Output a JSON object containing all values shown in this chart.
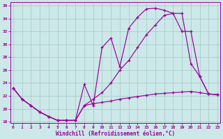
{
  "background_color": "#cce8e8",
  "grid_color": "#aacccc",
  "line_color": "#990099",
  "xlabel": "Windchill (Refroidissement éolien,°C)",
  "xlim": [
    -0.3,
    23.3
  ],
  "ylim": [
    17.8,
    36.5
  ],
  "ytick_vals": [
    18,
    20,
    22,
    24,
    26,
    28,
    30,
    32,
    34,
    36
  ],
  "xtick_vals": [
    0,
    1,
    2,
    3,
    4,
    5,
    6,
    7,
    8,
    9,
    10,
    11,
    12,
    13,
    14,
    15,
    16,
    17,
    18,
    19,
    20,
    21,
    22,
    23
  ],
  "line1_x": [
    0,
    1,
    2,
    3,
    4,
    5,
    6,
    7,
    8,
    9,
    10,
    11,
    12,
    13,
    14,
    15,
    16,
    17,
    18,
    19,
    20,
    21,
    22,
    23
  ],
  "line1_y": [
    23.2,
    21.5,
    20.5,
    19.5,
    18.8,
    18.2,
    18.2,
    18.2,
    23.8,
    20.5,
    29.5,
    31.0,
    26.5,
    32.5,
    34.2,
    35.5,
    35.6,
    35.3,
    34.8,
    34.8,
    27.0,
    25.0,
    22.3,
    22.2
  ],
  "line2_x": [
    0,
    1,
    2,
    3,
    4,
    5,
    6,
    7,
    8,
    9,
    10,
    11,
    12,
    13,
    14,
    15,
    16,
    17,
    18,
    19,
    20,
    21,
    22,
    23
  ],
  "line2_y": [
    23.2,
    21.5,
    20.5,
    19.5,
    18.8,
    18.2,
    18.2,
    18.2,
    20.5,
    21.5,
    22.5,
    24.0,
    26.0,
    27.5,
    29.5,
    31.5,
    33.0,
    34.5,
    34.8,
    32.0,
    32.0,
    25.0,
    22.3,
    22.2
  ],
  "line3_x": [
    0,
    1,
    2,
    3,
    4,
    5,
    6,
    7,
    8,
    9,
    10,
    11,
    12,
    13,
    14,
    15,
    16,
    17,
    18,
    19,
    20,
    21,
    22,
    23
  ],
  "line3_y": [
    23.2,
    21.5,
    20.5,
    19.5,
    18.8,
    18.2,
    18.2,
    18.2,
    20.5,
    20.8,
    21.0,
    21.2,
    21.5,
    21.7,
    21.9,
    22.1,
    22.3,
    22.4,
    22.5,
    22.6,
    22.7,
    22.5,
    22.3,
    22.2
  ]
}
